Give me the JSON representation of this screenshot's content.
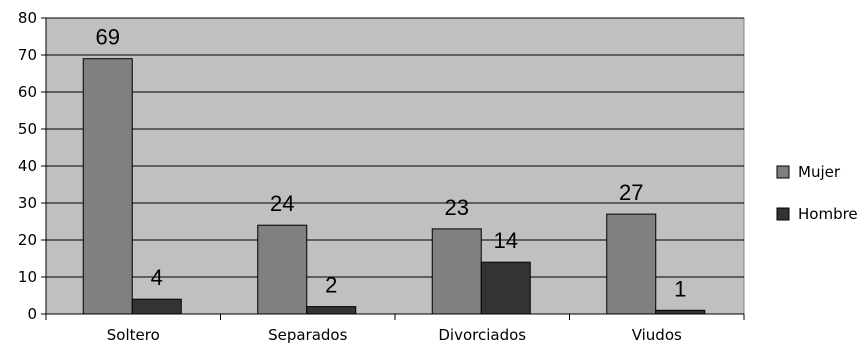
{
  "chart_data": {
    "type": "bar",
    "categories": [
      "Soltero",
      "Separados",
      "Divorciados",
      "Viudos"
    ],
    "series": [
      {
        "name": "Mujer",
        "values": [
          69,
          24,
          23,
          27
        ],
        "color": "#808080"
      },
      {
        "name": "Hombre",
        "values": [
          4,
          2,
          14,
          1
        ],
        "color": "#333333"
      }
    ],
    "title": "",
    "xlabel": "",
    "ylabel": "",
    "ylim": [
      0,
      80
    ],
    "yticks": [
      0,
      10,
      20,
      30,
      40,
      50,
      60,
      70,
      80
    ],
    "grid": true,
    "plot_background": "#c0c0c0",
    "legend_position": "right",
    "data_labels": true
  }
}
